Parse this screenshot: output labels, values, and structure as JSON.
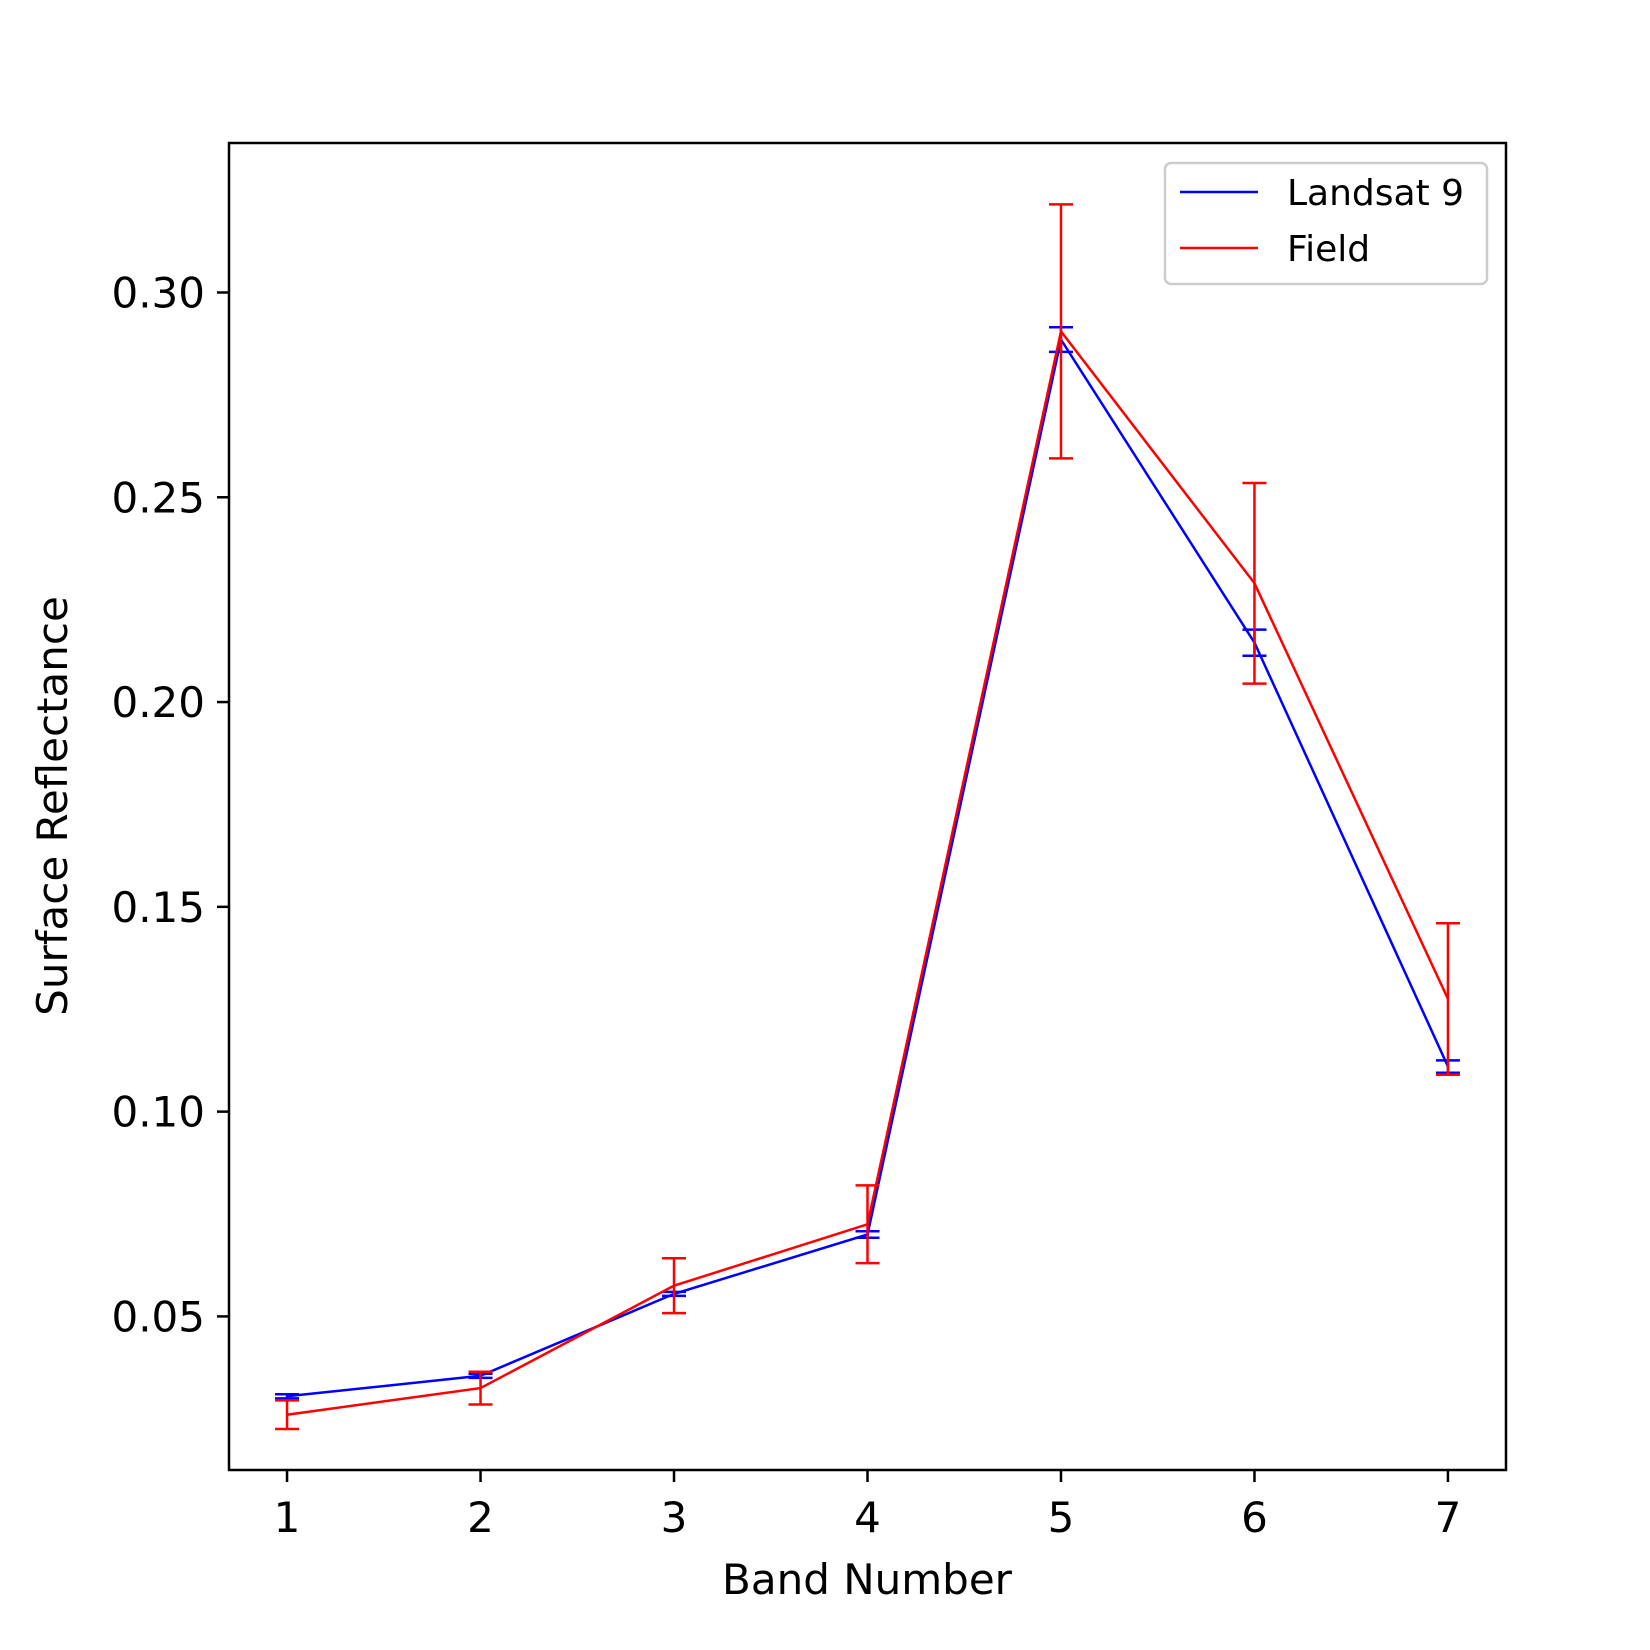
{
  "chart_data": {
    "type": "line",
    "title": "",
    "xlabel": "Band Number",
    "ylabel": "Surface Reflectance",
    "x": [
      1,
      2,
      3,
      4,
      5,
      6,
      7
    ],
    "xlim": [
      0.7,
      7.3
    ],
    "ylim": [
      0.0125,
      0.3365
    ],
    "xticks": [
      "1",
      "2",
      "3",
      "4",
      "5",
      "6",
      "7"
    ],
    "yticks": [
      "0.05",
      "0.10",
      "0.15",
      "0.20",
      "0.25",
      "0.30"
    ],
    "ytick_values": [
      0.05,
      0.1,
      0.15,
      0.2,
      0.25,
      0.3
    ],
    "grid": false,
    "legend_position": "top-right",
    "series": [
      {
        "name": "Landsat 9",
        "color": "#0000ff",
        "values": [
          0.0305,
          0.0355,
          0.0555,
          0.07,
          0.2885,
          0.2145,
          0.111
        ],
        "error": [
          0.0005,
          0.0005,
          0.0005,
          0.0008,
          0.003,
          0.0032,
          0.0015
        ]
      },
      {
        "name": "Field",
        "color": "#ff0000",
        "values": [
          0.026,
          0.0325,
          0.0575,
          0.0725,
          0.2905,
          0.229,
          0.1275
        ],
        "error": [
          0.0035,
          0.004,
          0.0067,
          0.0095,
          0.031,
          0.0245,
          0.0185
        ]
      }
    ]
  }
}
